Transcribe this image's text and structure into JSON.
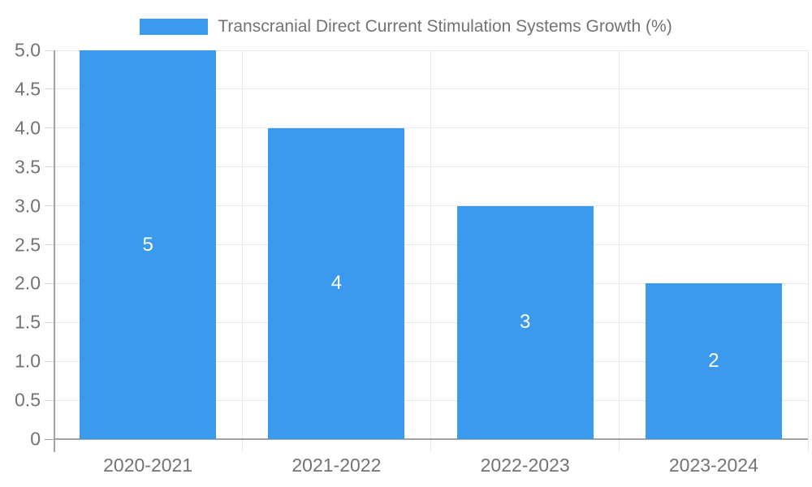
{
  "chart_data": {
    "type": "bar",
    "title": "Transcranial Direct Current Stimulation Systems Growth (%)",
    "legend_label": "Transcranial Direct Current Stimulation Systems Growth (%)",
    "legend_position": "top",
    "categories": [
      "2020-2021",
      "2021-2022",
      "2022-2023",
      "2023-2024"
    ],
    "values": [
      5,
      4,
      3,
      2
    ],
    "bar_labels": [
      "5",
      "4",
      "3",
      "2"
    ],
    "xlabel": "",
    "ylabel": "",
    "ylim": [
      0,
      5
    ],
    "ytick_step": 0.5,
    "ytick_labels": [
      "0",
      "0.5",
      "1.0",
      "1.5",
      "2.0",
      "2.5",
      "3.0",
      "3.5",
      "4.0",
      "4.5",
      "5.0"
    ],
    "grid": true,
    "colors": {
      "bar": "#3b99ee",
      "gridline": "#e8e8e8",
      "axis_line": "#a3a3a3",
      "tick": "#d6d6d6",
      "label_text": "#737373",
      "bar_value_text": "#ffffff",
      "background": "#ffffff"
    }
  }
}
